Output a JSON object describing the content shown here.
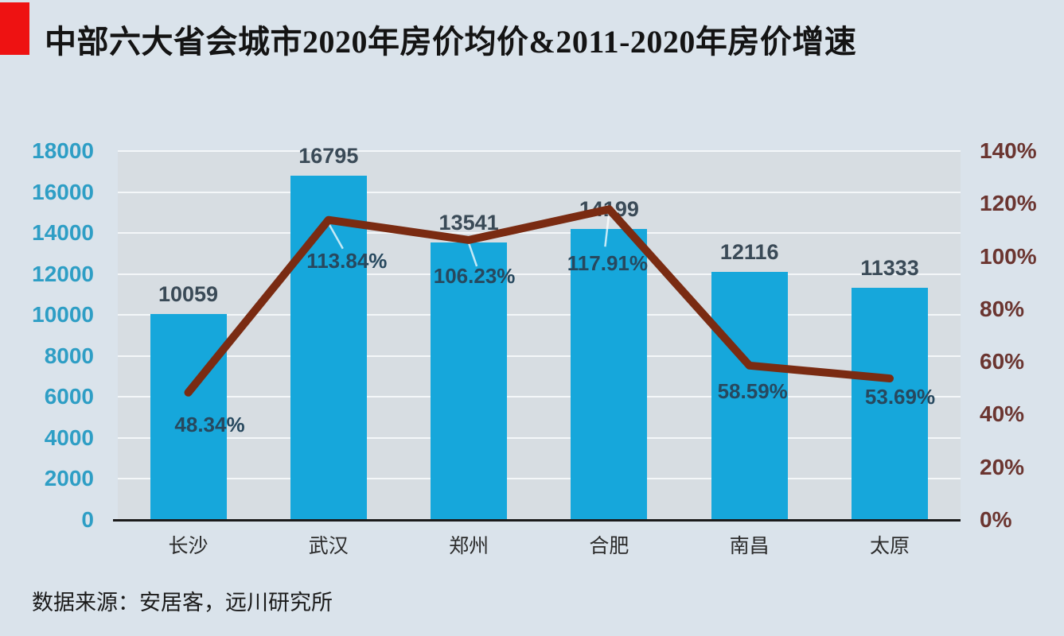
{
  "colors": {
    "page_bg": "#DAE3EB",
    "plot_bg": "#D7DDE2",
    "gridline": "#F4F7F9",
    "bar": "#16A7DB",
    "line": "#7A2B12",
    "leader_line": "rgba(255,255,255,0.75)",
    "left_axis_text": "#2E9EC5",
    "right_axis_text": "#6B3530",
    "bar_label_text": "#3A4A57",
    "pct_label_text": "#27485E",
    "category_text": "#2B2B2B",
    "title_text": "#141414",
    "accent_red": "#EE1212",
    "axis_line": "#1B1B1B",
    "source_text": "#1A1A1A"
  },
  "chart_data": {
    "type": "bar+line",
    "title": "中部六大省会城市2020年房价均价&2011-2020年房价增速",
    "source": "数据来源：安居客，远川研究所",
    "categories": [
      "长沙",
      "武汉",
      "郑州",
      "合肥",
      "南昌",
      "太原"
    ],
    "series": [
      {
        "name": "2020年房价均价",
        "type": "bar",
        "axis": "left",
        "values": [
          10059,
          16795,
          13541,
          14199,
          12116,
          11333
        ],
        "labels": [
          "10059",
          "16795",
          "13541",
          "14199",
          "12116",
          "11333"
        ]
      },
      {
        "name": "2011-2020年房价增速",
        "type": "line",
        "axis": "right",
        "values": [
          48.34,
          113.84,
          106.23,
          117.91,
          58.59,
          53.69
        ],
        "labels": [
          "48.34%",
          "113.84%",
          "106.23%",
          "117.91%",
          "58.59%",
          "53.69%"
        ]
      }
    ],
    "left_axis": {
      "min": 0,
      "max": 18000,
      "step": 2000,
      "ticks": [
        "0",
        "2000",
        "4000",
        "6000",
        "8000",
        "10000",
        "12000",
        "14000",
        "16000",
        "18000"
      ]
    },
    "right_axis": {
      "min": 0,
      "max": 140,
      "step": 20,
      "ticks": [
        "0%",
        "20%",
        "40%",
        "60%",
        "80%",
        "100%",
        "120%",
        "140%"
      ]
    },
    "grid": true,
    "legend": false
  }
}
